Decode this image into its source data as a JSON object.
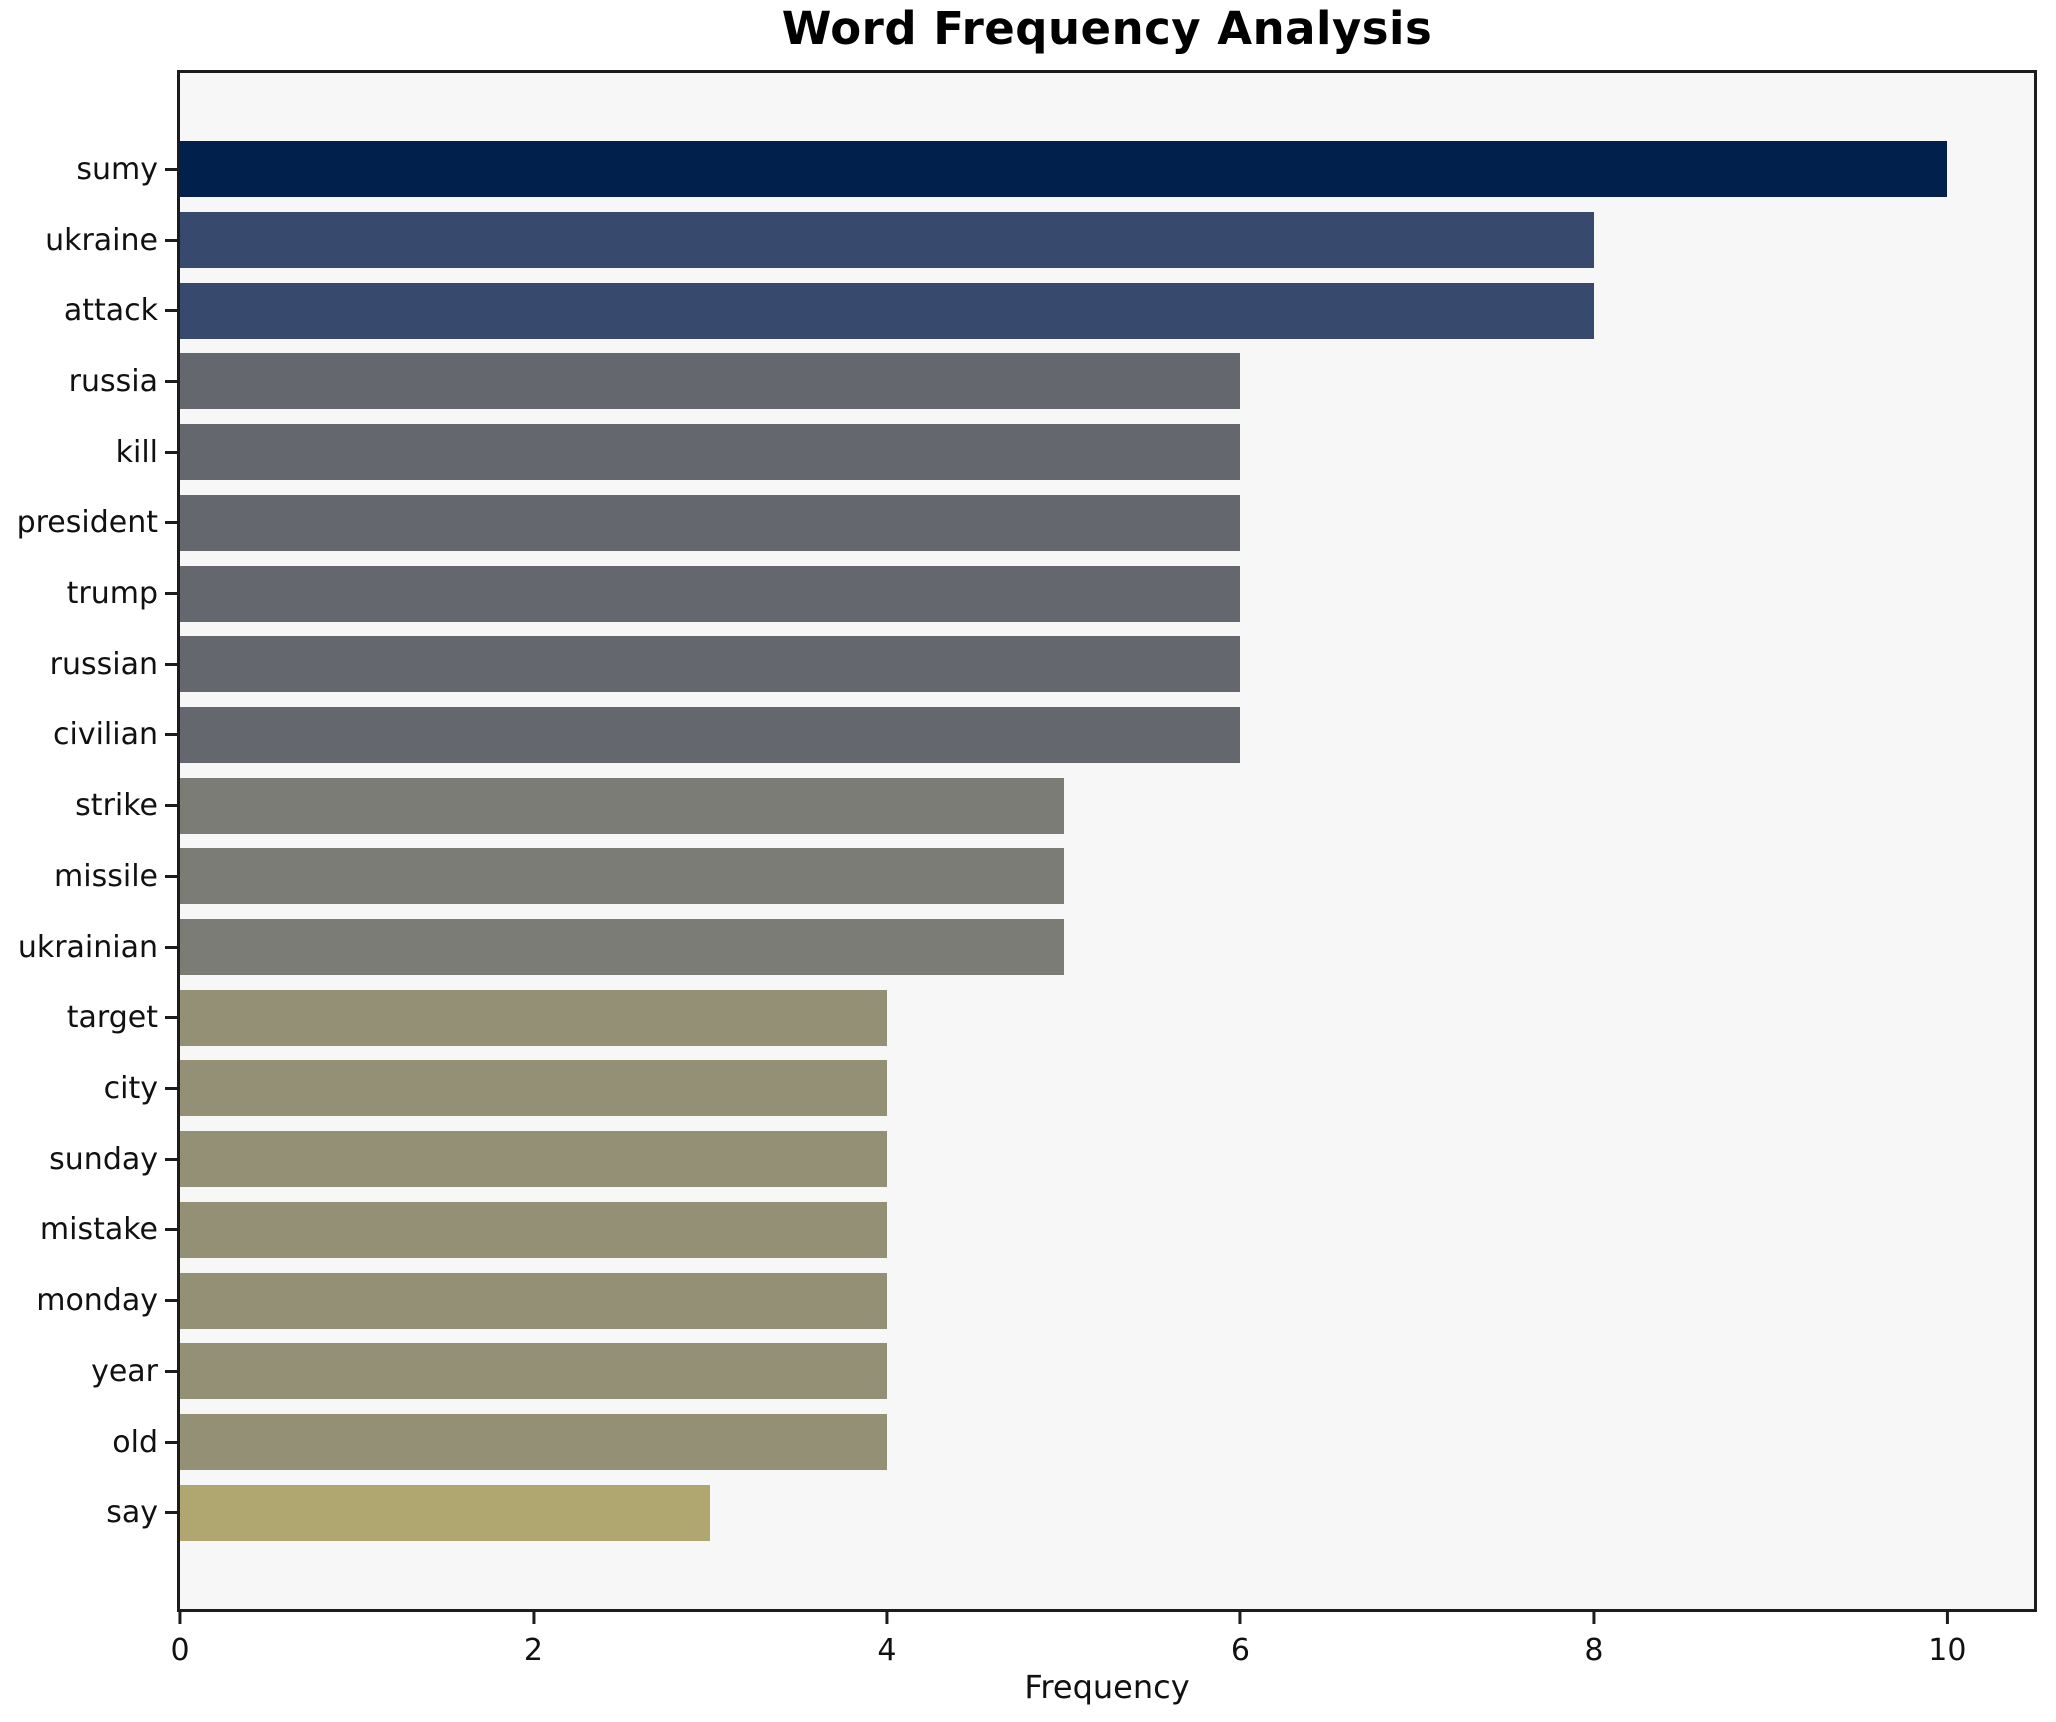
{
  "title": "Word Frequency Analysis",
  "xlabel": "Frequency",
  "chart_data": {
    "type": "bar",
    "orientation": "horizontal",
    "title": "Word Frequency Analysis",
    "xlabel": "Frequency",
    "ylabel": "",
    "categories": [
      "sumy",
      "ukraine",
      "attack",
      "russia",
      "kill",
      "president",
      "trump",
      "russian",
      "civilian",
      "strike",
      "missile",
      "ukrainian",
      "target",
      "city",
      "sunday",
      "mistake",
      "monday",
      "year",
      "old",
      "say"
    ],
    "values": [
      10,
      8,
      8,
      6,
      6,
      6,
      6,
      6,
      6,
      5,
      5,
      5,
      4,
      4,
      4,
      4,
      4,
      4,
      4,
      3
    ],
    "bar_colors": [
      "#02204C",
      "#38496E",
      "#38496E",
      "#64676E",
      "#64676E",
      "#64676E",
      "#64676E",
      "#64676E",
      "#64676E",
      "#7C7C76",
      "#7C7C76",
      "#7C7C76",
      "#949075",
      "#949075",
      "#949075",
      "#949075",
      "#949075",
      "#949075",
      "#949075",
      "#B0A670"
    ],
    "xticks": [
      0,
      2,
      4,
      6,
      8,
      10
    ],
    "xlim": [
      0,
      10.49
    ],
    "grid": false,
    "legend": "none",
    "plot_background": "#f7f7f8",
    "frame_color": "#1c1c1c",
    "text_color": "#111111"
  }
}
